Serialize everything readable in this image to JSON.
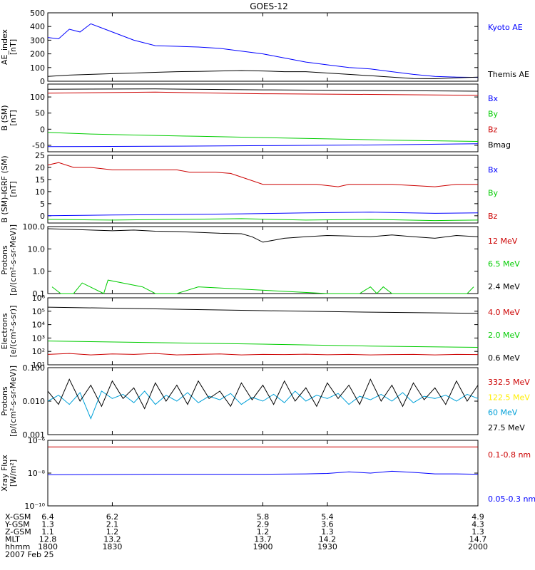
{
  "title": "GOES-12",
  "xlim": [
    1800,
    2000
  ],
  "time_ticks": [
    "1800",
    "1830",
    "1900",
    "1930",
    "2000"
  ],
  "bottom_table": {
    "row_labels": [
      "X-GSM",
      "Y-GSM",
      "Z-GSM",
      "MLT",
      "hhmm"
    ],
    "columns": [
      [
        "6.4",
        "1.3",
        "1.1",
        "12.8",
        "1800"
      ],
      [
        "6.2",
        "2.1",
        "1.2",
        "13.2",
        "1830"
      ],
      [
        "5.8",
        "2.9",
        "1.2",
        "13.7",
        "1900"
      ],
      [
        "5.4",
        "3.6",
        "1.3",
        "14.2",
        "1930"
      ],
      [
        "4.9",
        "4.3",
        "1.3",
        "14.7",
        "2000"
      ]
    ],
    "date": "2007 Feb 25"
  },
  "chart_data": [
    {
      "type": "line",
      "ylabel": [
        "AE_index",
        "[nT]"
      ],
      "ylim": [
        0,
        500
      ],
      "yscale": "linear",
      "yticks": [
        0,
        100,
        200,
        300,
        400,
        500
      ],
      "ytick_labels": [
        "0",
        "100",
        "200",
        "300",
        "400",
        "500"
      ],
      "series": [
        {
          "name": "Kyoto AE",
          "color": "#0000ff",
          "x": [
            1800,
            1805,
            1810,
            1815,
            1820,
            1825,
            1830,
            1840,
            1850,
            1860,
            1870,
            1880,
            1890,
            1900,
            1910,
            1920,
            1930,
            1940,
            1950,
            1960,
            1970,
            1980,
            1990,
            2000
          ],
          "y": [
            320,
            310,
            380,
            360,
            420,
            390,
            360,
            300,
            260,
            255,
            250,
            240,
            220,
            200,
            170,
            140,
            120,
            100,
            90,
            70,
            50,
            35,
            30,
            28
          ]
        },
        {
          "name": "Themis AE",
          "color": "#000000",
          "x": [
            1800,
            1810,
            1820,
            1830,
            1840,
            1850,
            1860,
            1870,
            1880,
            1890,
            1900,
            1910,
            1920,
            1930,
            1940,
            1950,
            1960,
            1970,
            1980,
            1990,
            2000
          ],
          "y": [
            35,
            45,
            50,
            55,
            60,
            65,
            70,
            72,
            75,
            78,
            75,
            70,
            70,
            60,
            50,
            40,
            30,
            20,
            18,
            25,
            30
          ]
        }
      ]
    },
    {
      "type": "line",
      "ylabel": [
        "B (SM)",
        "[nT]"
      ],
      "ylim": [
        -70,
        140
      ],
      "yscale": "linear",
      "yticks": [
        -50,
        0,
        50,
        100
      ],
      "ytick_labels": [
        "-50",
        "0",
        "50",
        "100"
      ],
      "series": [
        {
          "name": "Bx",
          "color": "#0000ff",
          "x": [
            1800,
            1850,
            1900,
            1950,
            2000
          ],
          "y": [
            -54,
            -53,
            -51,
            -49,
            -45
          ]
        },
        {
          "name": "By",
          "color": "#00cc00",
          "x": [
            1800,
            1820,
            1840,
            1870,
            1900,
            1930,
            1960,
            2000
          ],
          "y": [
            -10,
            -15,
            -18,
            -22,
            -26,
            -30,
            -34,
            -38
          ]
        },
        {
          "name": "Bz",
          "color": "#cc0000",
          "x": [
            1800,
            1850,
            1900,
            1950,
            2000
          ],
          "y": [
            112,
            115,
            110,
            108,
            105
          ]
        },
        {
          "name": "Bmag",
          "color": "#000000",
          "x": [
            1800,
            1850,
            1900,
            1950,
            2000
          ],
          "y": [
            124,
            125,
            122,
            120,
            118
          ]
        }
      ]
    },
    {
      "type": "line",
      "ylabel": [
        "B (SM)-IGRF (SM)",
        "[nT]"
      ],
      "ylim": [
        -3,
        25
      ],
      "yscale": "linear",
      "yticks": [
        0,
        5,
        10,
        15,
        20,
        25
      ],
      "ytick_labels": [
        "0",
        "5",
        "10",
        "15",
        "20",
        "25"
      ],
      "series": [
        {
          "name": "Bx",
          "color": "#0000ff",
          "x": [
            1800,
            1830,
            1860,
            1890,
            1920,
            1950,
            1980,
            2000
          ],
          "y": [
            0,
            0.3,
            0.5,
            0.8,
            1.2,
            1.5,
            1.0,
            1.2
          ]
        },
        {
          "name": "By",
          "color": "#00cc00",
          "x": [
            1800,
            1830,
            1860,
            1890,
            1920,
            1950,
            1980,
            2000
          ],
          "y": [
            -1.5,
            -1.8,
            -1.5,
            -1.2,
            -1.8,
            -1.5,
            -2,
            -1.8
          ]
        },
        {
          "name": "Bz",
          "color": "#cc0000",
          "x": [
            1800,
            1805,
            1812,
            1820,
            1830,
            1833,
            1845,
            1860,
            1866,
            1878,
            1885,
            1890,
            1900,
            1925,
            1935,
            1940,
            1960,
            1980,
            1990,
            2000
          ],
          "y": [
            21,
            22,
            20,
            20,
            19,
            19,
            19,
            19,
            18,
            18,
            17.5,
            16,
            13,
            13,
            12,
            13,
            13,
            12,
            13,
            13
          ]
        }
      ]
    },
    {
      "type": "line",
      "ylabel": [
        "Protons",
        "[p/(cm²-s-sr-MeV)]"
      ],
      "ylim": [
        0.1,
        100
      ],
      "yscale": "log",
      "yticks": [
        0.1,
        1,
        10,
        100
      ],
      "ytick_labels": [
        "0.1",
        "1.0",
        "10.0",
        "100.0"
      ],
      "series": [
        {
          "name": "12 MeV",
          "color": "#cc0000",
          "x": [],
          "y": []
        },
        {
          "name": "6.5 MeV",
          "color": "#00cc00",
          "x": [
            1802,
            1806,
            1812,
            1816,
            1826,
            1828,
            1844,
            1850,
            1860,
            1870,
            1930,
            1945,
            1950,
            1953,
            1956,
            1960,
            1995,
            1998
          ],
          "y": [
            0.2,
            0.1,
            0.1,
            0.3,
            0.1,
            0.4,
            0.2,
            0.1,
            0.1,
            0.2,
            0.1,
            0.1,
            0.2,
            0.1,
            0.2,
            0.1,
            0.1,
            0.2
          ]
        },
        {
          "name": "2.4 MeV",
          "color": "#000000",
          "x": [
            1800,
            1810,
            1820,
            1830,
            1840,
            1850,
            1860,
            1870,
            1880,
            1890,
            1895,
            1900,
            1910,
            1920,
            1930,
            1940,
            1950,
            1960,
            1970,
            1980,
            1990,
            2000
          ],
          "y": [
            80,
            75,
            70,
            65,
            70,
            62,
            60,
            55,
            50,
            48,
            35,
            20,
            30,
            35,
            40,
            38,
            35,
            42,
            35,
            30,
            40,
            35
          ]
        }
      ]
    },
    {
      "type": "line",
      "ylabel": [
        "Electrons",
        "[e/(cm²-s-sr)]"
      ],
      "ylim": [
        10,
        1000000
      ],
      "yscale": "log",
      "yticks": [
        10,
        100,
        1000,
        10000,
        100000,
        1000000
      ],
      "ytick_labels": [
        "10¹",
        "10²",
        "10³",
        "10⁴",
        "10⁵",
        "10⁶"
      ],
      "series": [
        {
          "name": "4.0 MeV",
          "color": "#cc0000",
          "x": [
            1800,
            1810,
            1820,
            1830,
            1840,
            1850,
            1860,
            1870,
            1880,
            1890,
            1900,
            1910,
            1920,
            1930,
            1940,
            1950,
            1960,
            1970,
            1980,
            1990,
            2000
          ],
          "y": [
            60,
            70,
            55,
            65,
            60,
            70,
            55,
            60,
            65,
            55,
            60,
            58,
            62,
            56,
            60,
            55,
            58,
            60,
            55,
            60,
            58
          ]
        },
        {
          "name": "2.0 MeV",
          "color": "#00cc00",
          "x": [
            1800,
            1850,
            1900,
            1950,
            2000
          ],
          "y": [
            600,
            450,
            350,
            250,
            200
          ]
        },
        {
          "name": "0.6 MeV",
          "color": "#000000",
          "x": [
            1800,
            1850,
            1900,
            1950,
            2000
          ],
          "y": [
            200000,
            150000,
            110000,
            85000,
            70000
          ]
        }
      ]
    },
    {
      "type": "line",
      "ylabel": [
        "Protons",
        "[p/(cm²-s-sr-MeV)]"
      ],
      "ylim": [
        0.001,
        0.1
      ],
      "yscale": "log",
      "yticks": [
        0.001,
        0.01,
        0.1
      ],
      "ytick_labels": [
        "0.001",
        "0.010",
        "0.100"
      ],
      "series": [
        {
          "name": "332.5 MeV",
          "color": "#cc0000",
          "x": [],
          "y": []
        },
        {
          "name": "122.5 MeV",
          "color": "#ffee00",
          "x": [],
          "y": []
        },
        {
          "name": "60 MeV",
          "color": "#00a0d8",
          "x": [
            1800,
            1805,
            1810,
            1815,
            1820,
            1825,
            1830,
            1835,
            1840,
            1845,
            1850,
            1855,
            1860,
            1865,
            1870,
            1875,
            1880,
            1885,
            1890,
            1895,
            1900,
            1905,
            1910,
            1915,
            1920,
            1925,
            1930,
            1935,
            1940,
            1945,
            1950,
            1955,
            1960,
            1965,
            1970,
            1975,
            1980,
            1985,
            1990,
            1995,
            2000
          ],
          "y": [
            0.01,
            0.015,
            0.008,
            0.018,
            0.003,
            0.02,
            0.012,
            0.016,
            0.009,
            0.02,
            0.008,
            0.015,
            0.01,
            0.018,
            0.009,
            0.014,
            0.011,
            0.017,
            0.008,
            0.013,
            0.01,
            0.016,
            0.009,
            0.02,
            0.01,
            0.015,
            0.012,
            0.017,
            0.008,
            0.014,
            0.011,
            0.016,
            0.01,
            0.018,
            0.009,
            0.014,
            0.012,
            0.015,
            0.01,
            0.016,
            0.012
          ]
        },
        {
          "name": "27.5 MeV",
          "color": "#000000",
          "x": [
            1800,
            1805,
            1810,
            1815,
            1820,
            1825,
            1830,
            1835,
            1840,
            1845,
            1850,
            1855,
            1860,
            1865,
            1870,
            1875,
            1880,
            1885,
            1890,
            1895,
            1900,
            1905,
            1910,
            1915,
            1920,
            1925,
            1930,
            1935,
            1940,
            1945,
            1950,
            1955,
            1960,
            1965,
            1970,
            1975,
            1980,
            1985,
            1990,
            1995,
            2000
          ],
          "y": [
            0.02,
            0.008,
            0.045,
            0.01,
            0.03,
            0.007,
            0.04,
            0.012,
            0.025,
            0.006,
            0.035,
            0.01,
            0.03,
            0.008,
            0.04,
            0.012,
            0.02,
            0.007,
            0.035,
            0.011,
            0.03,
            0.008,
            0.04,
            0.01,
            0.025,
            0.007,
            0.035,
            0.012,
            0.03,
            0.008,
            0.045,
            0.01,
            0.03,
            0.007,
            0.035,
            0.011,
            0.025,
            0.008,
            0.04,
            0.01,
            0.03
          ]
        }
      ]
    },
    {
      "type": "line",
      "ylabel": [
        "Xray Flux",
        "[W/m²]"
      ],
      "ylim": [
        1e-10,
        1e-06
      ],
      "yscale": "log",
      "yticks": [
        1e-10,
        1e-08,
        1e-06
      ],
      "ytick_labels": [
        "10⁻¹⁰",
        "10⁻⁸",
        "10⁻⁶"
      ],
      "series": [
        {
          "name": "0.1-0.8 nm",
          "color": "#cc0000",
          "x": [
            1800,
            2000
          ],
          "y": [
            4e-07,
            4e-07
          ]
        },
        {
          "name": "0.05-0.3 nm",
          "color": "#0000ff",
          "x": [
            1800,
            1850,
            1900,
            1920,
            1930,
            1940,
            1950,
            1960,
            1970,
            1980,
            1990,
            2000
          ],
          "y": [
            8e-09,
            8.5e-09,
            8.5e-09,
            9e-09,
            9.5e-09,
            1.2e-08,
            1e-08,
            1.3e-08,
            1.1e-08,
            9e-09,
            9e-09,
            8.5e-09
          ]
        }
      ]
    }
  ]
}
